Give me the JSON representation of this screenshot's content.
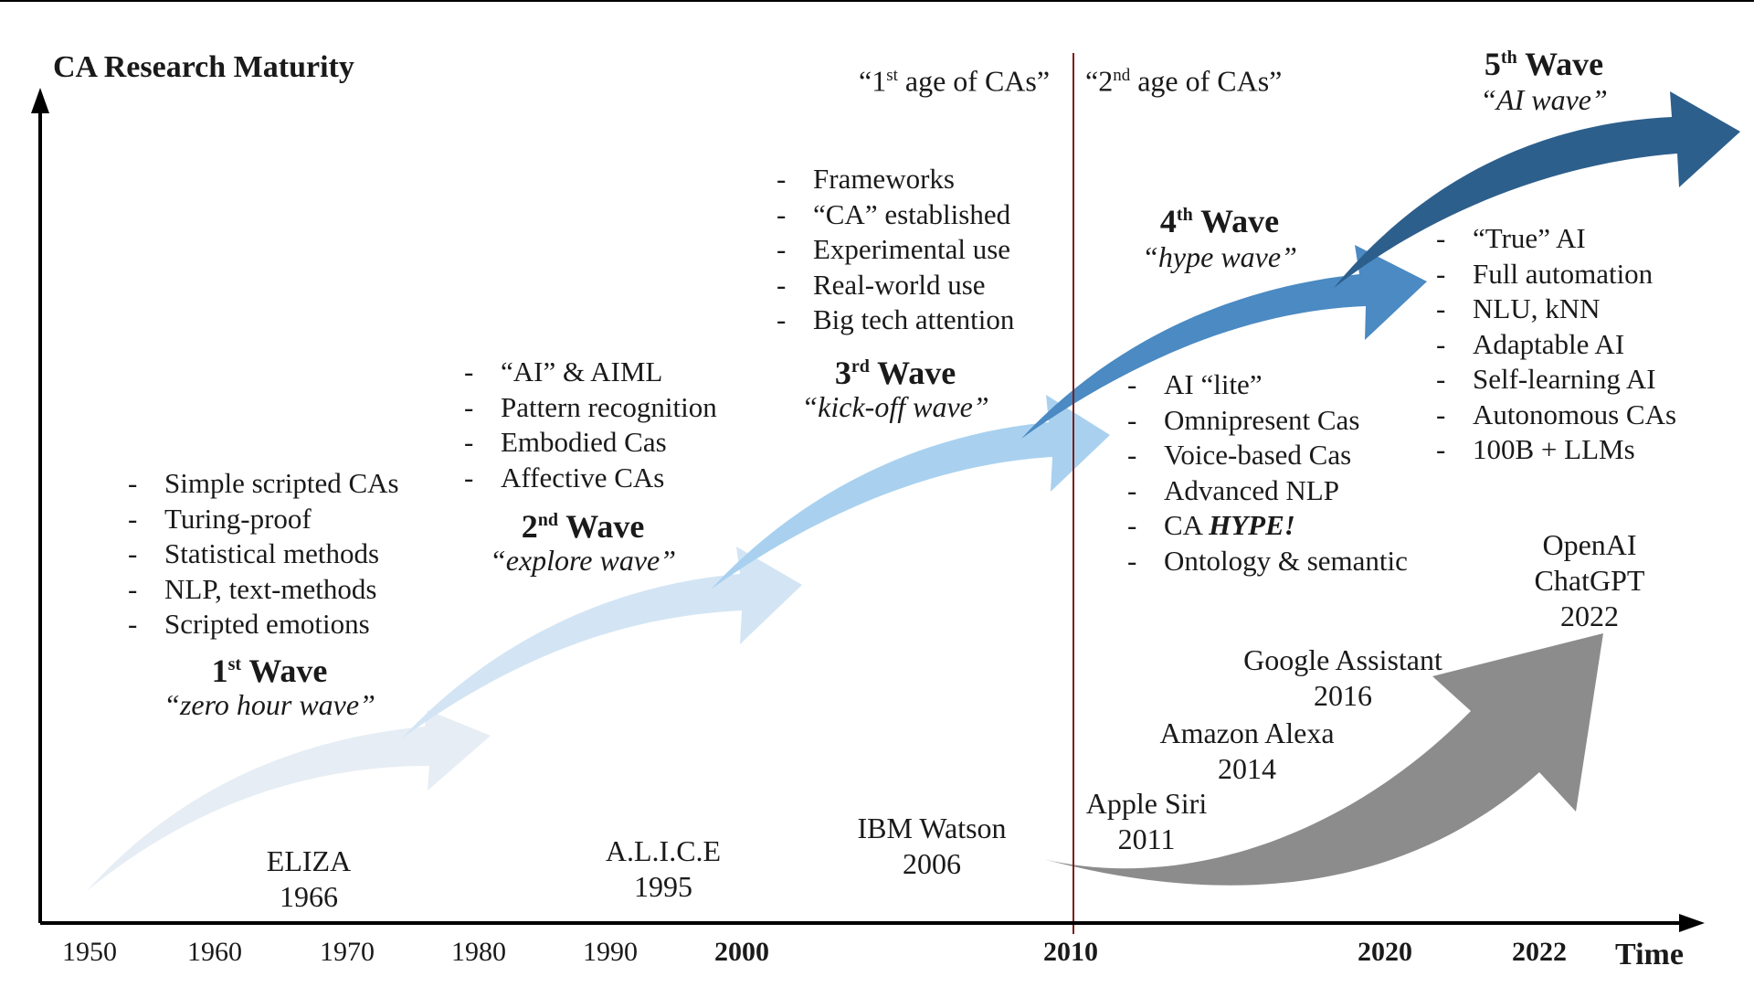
{
  "axes": {
    "y_title": "CA Research Maturity",
    "x_title": "Time",
    "x_ticks": [
      {
        "label": "1950",
        "bold": false
      },
      {
        "label": "1960",
        "bold": false
      },
      {
        "label": "1970",
        "bold": false
      },
      {
        "label": "1980",
        "bold": false
      },
      {
        "label": "1990",
        "bold": false
      },
      {
        "label": "2000",
        "bold": true
      },
      {
        "label": "2010",
        "bold": true
      },
      {
        "label": "2020",
        "bold": true
      },
      {
        "label": "2022",
        "bold": true
      }
    ]
  },
  "ages": {
    "first": {
      "pre": "“1",
      "sup": "st",
      "post": " age of CAs”"
    },
    "second": {
      "pre": "“2",
      "sup": "nd",
      "post": " age of CAs”"
    }
  },
  "waves": [
    {
      "num": "1",
      "sup": "st",
      "word": " Wave",
      "subtitle": "“zero hour wave”",
      "color": "#e6edf4",
      "items": [
        "Simple scripted CAs",
        "Turing-proof",
        "Statistical methods",
        "NLP, text-methods",
        "Scripted emotions"
      ]
    },
    {
      "num": "2",
      "sup": "nd",
      "word": " Wave",
      "subtitle": "“explore wave”",
      "color": "#d3e5f4",
      "items": [
        "“AI” & AIML",
        "Pattern recognition",
        "Embodied Cas",
        "Affective CAs"
      ]
    },
    {
      "num": "3",
      "sup": "rd",
      "word": " Wave",
      "subtitle": "“kick-off wave”",
      "color": "#a9d1ef",
      "items": [
        "Frameworks",
        "“CA” established",
        "Experimental use",
        "Real-world use",
        "Big tech attention"
      ]
    },
    {
      "num": "4",
      "sup": "th",
      "word": " Wave",
      "subtitle": "“hype wave”",
      "color": "#4b8ac2",
      "items": [
        "AI “lite”",
        "Omnipresent Cas",
        "Voice-based Cas",
        "Advanced NLP",
        "CA HYPE!",
        "Ontology & semantic"
      ]
    },
    {
      "num": "5",
      "sup": "th",
      "word": " Wave",
      "subtitle": "“AI wave”",
      "color": "#2d5f8c",
      "items": [
        "“True” AI",
        "Full automation",
        "NLU, kNN",
        "Adaptable AI",
        "Self-learning AI",
        "Autonomous CAs",
        "100B + LLMs"
      ]
    }
  ],
  "hype_word": "HYPE!",
  "milestones": [
    {
      "name": "ELIZA",
      "year": "1966"
    },
    {
      "name": "A.L.I.C.E",
      "year": "1995"
    },
    {
      "name": "IBM Watson",
      "year": "2006"
    },
    {
      "name": "Apple Siri",
      "year": "2011"
    },
    {
      "name": "Amazon Alexa",
      "year": "2014"
    },
    {
      "name": "Google Assistant",
      "year": "2016"
    },
    {
      "name": "OpenAI",
      "name2": "ChatGPT",
      "year": "2022"
    }
  ],
  "colors": {
    "axis": "#000000",
    "divider": "#7a1f1f",
    "commercial_arrow": "#8c8c8c"
  }
}
